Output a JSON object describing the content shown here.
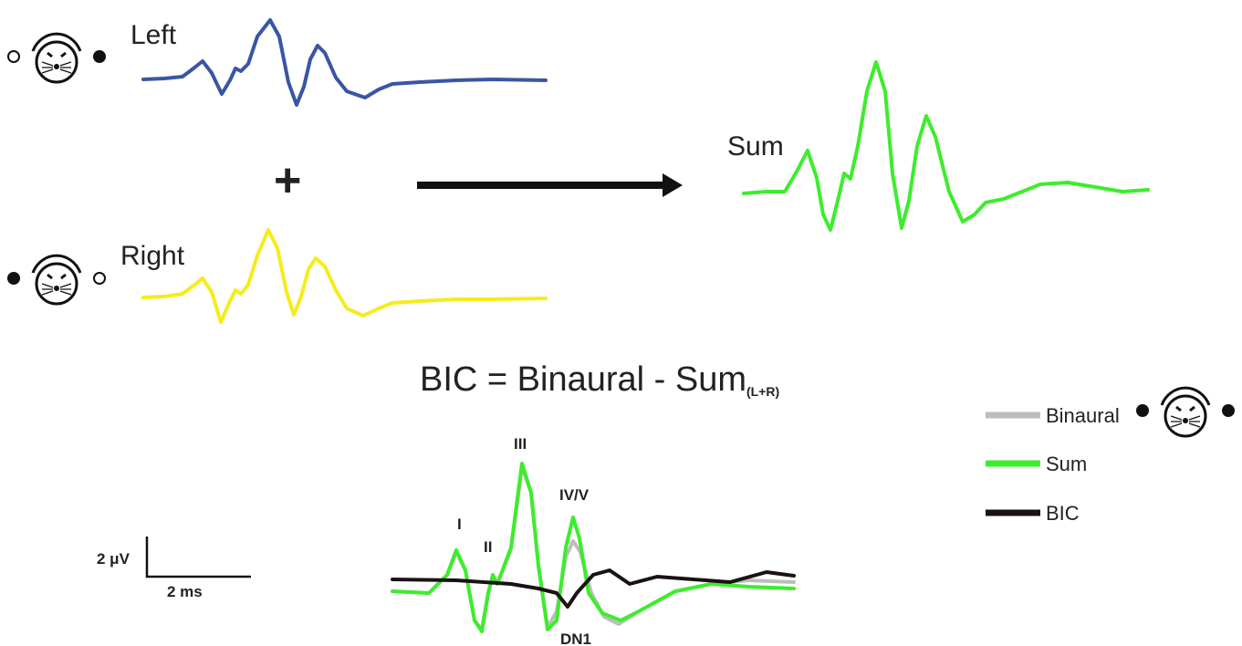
{
  "panels": {
    "left": "Left",
    "right": "Right",
    "sum": "Sum",
    "plus": "+"
  },
  "equation": {
    "text": "BIC = Binaural - Sum",
    "subscript": "(L+R)"
  },
  "legend": [
    "Binaural",
    "Sum",
    "BIC"
  ],
  "scale_bar": {
    "y": "2 μV",
    "x": "2 ms"
  },
  "peaks": [
    "I",
    "II",
    "III",
    "IV/V",
    "DN1"
  ]
}
